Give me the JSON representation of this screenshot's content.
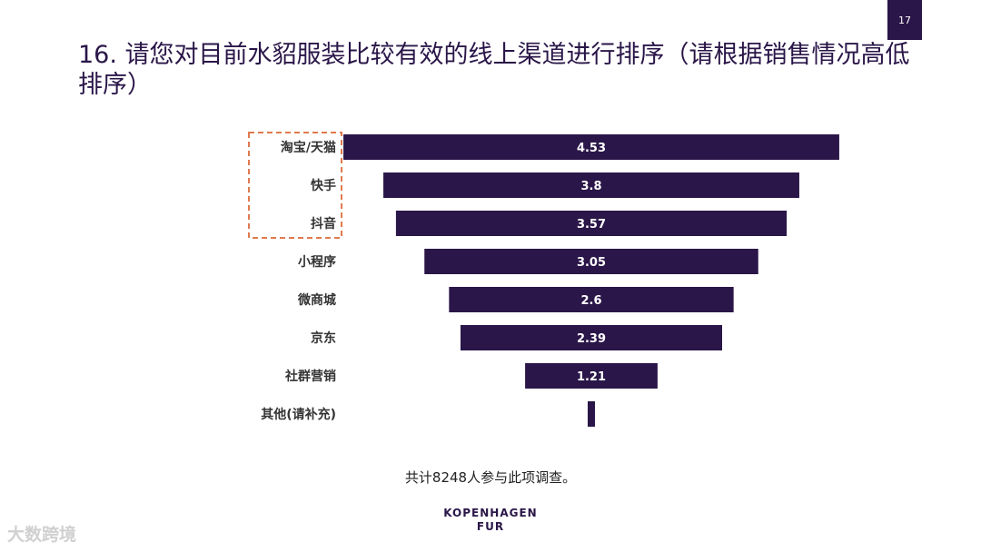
{
  "page_number": "17",
  "title": "16. 请您对目前水貂服装比较有效的线上渠道进行排序（请根据销售情况高低排序）",
  "footnote": "共计8248人参与此项调查。",
  "brand": {
    "line1": "KOPENHAGEN",
    "line2": "FUR"
  },
  "watermark": "大数跨境",
  "colors": {
    "bar": "#2a1648",
    "highlight_box": "#e07a4f",
    "bar_label": "#ffffff",
    "category_label": "#333333"
  },
  "chart_data": {
    "type": "bar",
    "orientation": "horizontal-funnel",
    "title": "",
    "xlabel": "",
    "ylabel": "",
    "categories": [
      "淘宝/天猫",
      "快手",
      "抖音",
      "小程序",
      "微商城",
      "京东",
      "社群营销",
      "其他(请补充)"
    ],
    "values": [
      4.53,
      3.8,
      3.57,
      3.05,
      2.6,
      2.39,
      1.21,
      null
    ],
    "data_labels": [
      "4.53",
      "3.8",
      "3.57",
      "3.05",
      "2.6",
      "2.39",
      "1.21",
      ""
    ],
    "highlighted_categories": [
      "淘宝/天猫",
      "快手",
      "抖音"
    ],
    "grid": false,
    "legend": "none"
  }
}
